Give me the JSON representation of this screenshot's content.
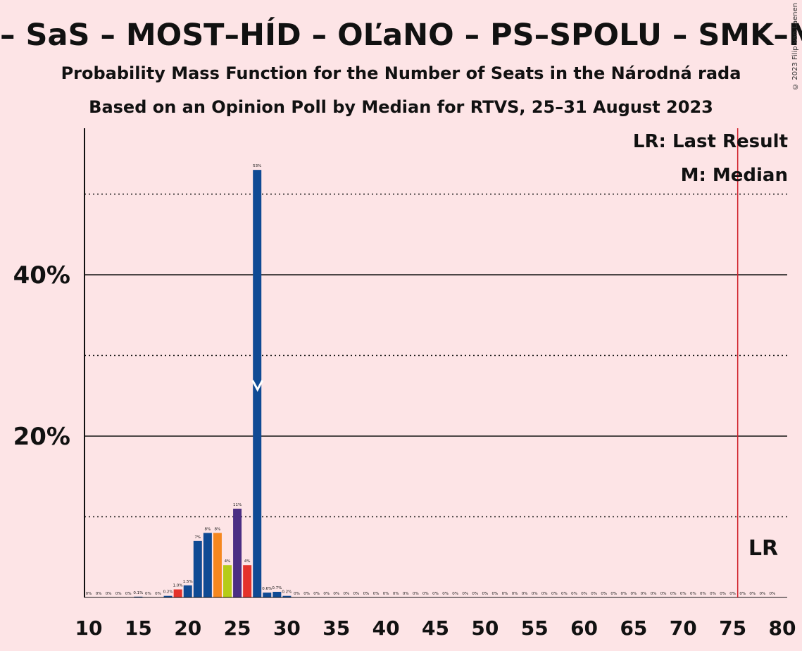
{
  "title": "– SaS – MOST–HÍD – OĽaNO – PS–SPOLU – SMK–MK",
  "subtitle1": "Probability Mass Function for the Number of Seats in the Národná rada",
  "subtitle2": "Based on an Opinion Poll by Median for RTVS, 25–31 August 2023",
  "copyright": "© 2023 Filip van Laenen",
  "legend_lr": "LR: Last Result",
  "legend_m": "M: Median",
  "lr_label": "LR",
  "colors": {
    "background": "#fde4e6",
    "blue": "#0f4a94",
    "red": "#e4322b",
    "orange": "#f5871f",
    "yellow": "#b5cc18",
    "purple": "#4b2e83",
    "lr_line": "#d0202a"
  },
  "chart_data": {
    "type": "bar",
    "xlim": [
      10,
      80
    ],
    "ylim": [
      0,
      58
    ],
    "x_ticks": [
      10,
      15,
      20,
      25,
      30,
      35,
      40,
      45,
      50,
      55,
      60,
      65,
      70,
      75,
      80
    ],
    "y_ticks_labeled": [
      {
        "value": 20,
        "label": "20%"
      },
      {
        "value": 40,
        "label": "40%"
      }
    ],
    "y_gridlines_solid": [
      20,
      40
    ],
    "y_gridlines_dotted": [
      10,
      30,
      50
    ],
    "median": 27,
    "last_result": 76,
    "bars": [
      {
        "x": 11,
        "value": 0,
        "label": "0%",
        "color": "blue"
      },
      {
        "x": 12,
        "value": 0,
        "label": "0%",
        "color": "blue"
      },
      {
        "x": 13,
        "value": 0,
        "label": "0%",
        "color": "blue"
      },
      {
        "x": 14,
        "value": 0,
        "label": "0%",
        "color": "blue"
      },
      {
        "x": 15,
        "value": 0,
        "label": "0%",
        "color": "blue"
      },
      {
        "x": 16,
        "value": 0.1,
        "label": "0.1%",
        "color": "blue"
      },
      {
        "x": 17,
        "value": 0,
        "label": "0%",
        "color": "blue"
      },
      {
        "x": 18,
        "value": 0,
        "label": "0%",
        "color": "blue"
      },
      {
        "x": 19,
        "value": 0.2,
        "label": "0.2%",
        "color": "blue"
      },
      {
        "x": 20,
        "value": 1.0,
        "label": "1.0%",
        "color": "red"
      },
      {
        "x": 21,
        "value": 1.5,
        "label": "1.5%",
        "color": "blue"
      },
      {
        "x": 22,
        "value": 7,
        "label": "7%",
        "color": "blue"
      },
      {
        "x": 23,
        "value": 8,
        "label": "8%",
        "color": "blue"
      },
      {
        "x": 24,
        "value": 8,
        "label": "8%",
        "color": "orange"
      },
      {
        "x": 25,
        "value": 4,
        "label": "4%",
        "color": "yellow"
      },
      {
        "x": 26,
        "value": 11,
        "label": "11%",
        "color": "purple"
      },
      {
        "x": 27,
        "value": 4,
        "label": "4%",
        "color": "red"
      },
      {
        "x": 28,
        "value": 53,
        "label": "53%",
        "color": "blue"
      },
      {
        "x": 29,
        "value": 0.6,
        "label": "0.6%",
        "color": "blue"
      },
      {
        "x": 30,
        "value": 0.7,
        "label": "0.7%",
        "color": "blue"
      },
      {
        "x": 31,
        "value": 0.2,
        "label": "0.2%",
        "color": "blue"
      },
      {
        "x": 32,
        "value": 0,
        "label": "0%",
        "color": "blue"
      },
      {
        "x": 33,
        "value": 0,
        "label": "0%",
        "color": "blue"
      },
      {
        "x": 34,
        "value": 0,
        "label": "0%",
        "color": "blue"
      },
      {
        "x": 35,
        "value": 0,
        "label": "0%",
        "color": "blue"
      },
      {
        "x": 36,
        "value": 0,
        "label": "0%",
        "color": "blue"
      },
      {
        "x": 37,
        "value": 0,
        "label": "0%",
        "color": "blue"
      },
      {
        "x": 38,
        "value": 0,
        "label": "0%",
        "color": "blue"
      },
      {
        "x": 39,
        "value": 0,
        "label": "0%",
        "color": "blue"
      },
      {
        "x": 40,
        "value": 0,
        "label": "0%",
        "color": "blue"
      },
      {
        "x": 41,
        "value": 0,
        "label": "0%",
        "color": "blue"
      },
      {
        "x": 42,
        "value": 0,
        "label": "0%",
        "color": "blue"
      },
      {
        "x": 43,
        "value": 0,
        "label": "0%",
        "color": "blue"
      },
      {
        "x": 44,
        "value": 0,
        "label": "0%",
        "color": "blue"
      },
      {
        "x": 45,
        "value": 0,
        "label": "0%",
        "color": "blue"
      },
      {
        "x": 46,
        "value": 0,
        "label": "0%",
        "color": "blue"
      },
      {
        "x": 47,
        "value": 0,
        "label": "0%",
        "color": "blue"
      },
      {
        "x": 48,
        "value": 0,
        "label": "0%",
        "color": "blue"
      },
      {
        "x": 49,
        "value": 0,
        "label": "0%",
        "color": "blue"
      },
      {
        "x": 50,
        "value": 0,
        "label": "0%",
        "color": "blue"
      },
      {
        "x": 51,
        "value": 0,
        "label": "0%",
        "color": "blue"
      },
      {
        "x": 52,
        "value": 0,
        "label": "0%",
        "color": "blue"
      },
      {
        "x": 53,
        "value": 0,
        "label": "0%",
        "color": "blue"
      },
      {
        "x": 54,
        "value": 0,
        "label": "0%",
        "color": "blue"
      },
      {
        "x": 55,
        "value": 0,
        "label": "0%",
        "color": "blue"
      },
      {
        "x": 56,
        "value": 0,
        "label": "0%",
        "color": "blue"
      },
      {
        "x": 57,
        "value": 0,
        "label": "0%",
        "color": "blue"
      },
      {
        "x": 58,
        "value": 0,
        "label": "0%",
        "color": "blue"
      },
      {
        "x": 59,
        "value": 0,
        "label": "0%",
        "color": "blue"
      },
      {
        "x": 60,
        "value": 0,
        "label": "0%",
        "color": "blue"
      },
      {
        "x": 61,
        "value": 0,
        "label": "0%",
        "color": "blue"
      },
      {
        "x": 62,
        "value": 0,
        "label": "0%",
        "color": "blue"
      },
      {
        "x": 63,
        "value": 0,
        "label": "0%",
        "color": "blue"
      },
      {
        "x": 64,
        "value": 0,
        "label": "0%",
        "color": "blue"
      },
      {
        "x": 65,
        "value": 0,
        "label": "0%",
        "color": "blue"
      },
      {
        "x": 66,
        "value": 0,
        "label": "0%",
        "color": "blue"
      },
      {
        "x": 67,
        "value": 0,
        "label": "0%",
        "color": "blue"
      },
      {
        "x": 68,
        "value": 0,
        "label": "0%",
        "color": "blue"
      },
      {
        "x": 69,
        "value": 0,
        "label": "0%",
        "color": "blue"
      },
      {
        "x": 70,
        "value": 0,
        "label": "0%",
        "color": "blue"
      },
      {
        "x": 71,
        "value": 0,
        "label": "0%",
        "color": "blue"
      },
      {
        "x": 72,
        "value": 0,
        "label": "0%",
        "color": "blue"
      },
      {
        "x": 73,
        "value": 0,
        "label": "0%",
        "color": "blue"
      },
      {
        "x": 74,
        "value": 0,
        "label": "0%",
        "color": "blue"
      },
      {
        "x": 75,
        "value": 0,
        "label": "0%",
        "color": "blue"
      },
      {
        "x": 76,
        "value": 0,
        "label": "0%",
        "color": "blue"
      },
      {
        "x": 77,
        "value": 0,
        "label": "0%",
        "color": "blue"
      },
      {
        "x": 78,
        "value": 0,
        "label": "0%",
        "color": "blue"
      },
      {
        "x": 79,
        "value": 0,
        "label": "0%",
        "color": "blue"
      },
      {
        "x": 80,
        "value": 0,
        "label": "0%",
        "color": "blue"
      }
    ]
  }
}
